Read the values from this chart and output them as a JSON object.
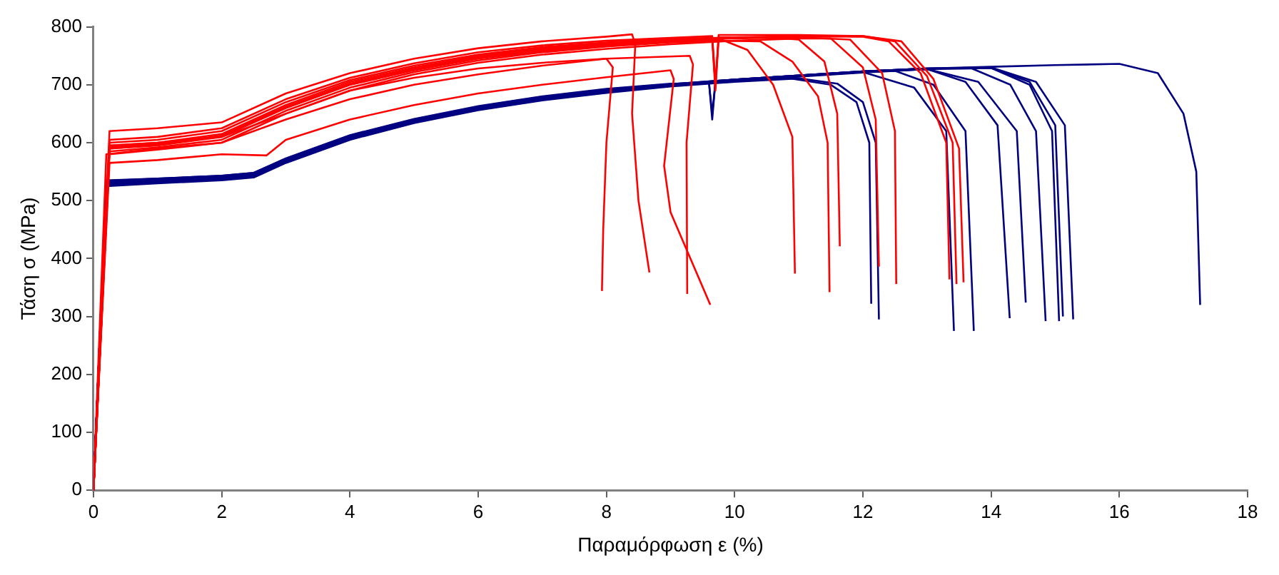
{
  "chart_data": {
    "type": "line",
    "xlabel": "Παραμόρφωση ε (%)",
    "ylabel": "Τάση σ (MPa)",
    "xlim": [
      0,
      18
    ],
    "xticks": [
      0,
      2,
      4,
      6,
      8,
      10,
      12,
      14,
      16,
      18
    ],
    "ylim": [
      0,
      800
    ],
    "yticks": [
      0,
      100,
      200,
      300,
      400,
      500,
      600,
      700,
      800
    ],
    "grid": false,
    "legend": false,
    "marker": "none",
    "line_style": "solid",
    "series": [
      {
        "color": "#ff0000",
        "x": [
          0,
          0.2,
          1,
          2,
          3,
          4,
          5,
          6,
          7,
          8.0,
          8.1,
          8.0,
          7.95,
          7.93
        ],
        "values": [
          0,
          580,
          590,
          600,
          640,
          675,
          700,
          718,
          733,
          745,
          730,
          600,
          450,
          344
        ]
      },
      {
        "color": "#ff0000",
        "x": [
          0,
          0.25,
          1,
          2,
          3,
          4,
          5,
          6,
          7,
          8,
          8.4,
          8.45,
          8.4,
          8.5,
          8.67
        ],
        "values": [
          0,
          620,
          625,
          635,
          685,
          720,
          745,
          763,
          775,
          783,
          787,
          770,
          650,
          500,
          376
        ]
      },
      {
        "color": "#ff0000",
        "x": [
          0,
          0.25,
          1,
          2,
          2.7,
          3,
          4,
          5,
          6,
          7,
          8,
          9,
          9.05,
          8.9,
          9.0,
          9.62
        ],
        "values": [
          0,
          565,
          570,
          580,
          578,
          605,
          640,
          665,
          685,
          700,
          713,
          725,
          710,
          560,
          480,
          320
        ]
      },
      {
        "color": "#ff0000",
        "x": [
          0,
          0.25,
          1,
          2,
          3,
          4,
          5,
          6,
          7,
          8,
          9.3,
          9.35,
          9.25,
          9.26
        ],
        "values": [
          0,
          595,
          600,
          610,
          650,
          690,
          712,
          728,
          738,
          745,
          750,
          735,
          600,
          339
        ]
      },
      {
        "color": "#ff0000",
        "x": [
          0,
          0.25,
          1,
          2,
          3,
          4,
          5,
          6,
          7,
          8,
          9,
          9.65,
          9.7,
          9.75,
          10.2,
          10.6,
          10.9,
          10.94
        ],
        "values": [
          0,
          590,
          595,
          610,
          660,
          700,
          725,
          745,
          758,
          768,
          775,
          778,
          690,
          780,
          760,
          700,
          610,
          374
        ]
      },
      {
        "color": "#ff0000",
        "x": [
          0,
          0.25,
          1,
          2,
          3,
          4,
          5,
          6,
          7,
          8,
          9,
          9.7,
          10.4,
          10.9,
          11.3,
          11.45,
          11.48
        ],
        "values": [
          0,
          585,
          592,
          605,
          655,
          695,
          722,
          742,
          756,
          766,
          773,
          776,
          775,
          740,
          680,
          600,
          342
        ]
      },
      {
        "color": "#ff0000",
        "x": [
          0,
          0.25,
          1,
          2,
          3,
          4,
          5,
          6,
          7,
          8,
          9,
          9.65,
          9.7,
          9.75,
          10.5,
          11.0,
          11.4,
          11.6,
          11.64
        ],
        "values": [
          0,
          600,
          605,
          620,
          670,
          708,
          733,
          752,
          765,
          773,
          779,
          781,
          700,
          782,
          782,
          778,
          740,
          650,
          421
        ]
      },
      {
        "color": "#ff0000",
        "x": [
          0,
          0.25,
          1,
          2,
          3,
          4,
          5,
          6,
          7,
          8,
          9,
          10,
          11,
          11.5,
          12.0,
          12.2,
          12.25
        ],
        "values": [
          0,
          580,
          588,
          600,
          650,
          690,
          718,
          738,
          752,
          762,
          770,
          776,
          780,
          780,
          730,
          640,
          386
        ]
      },
      {
        "color": "#ff0000",
        "x": [
          0,
          0.25,
          1,
          2,
          3,
          4,
          5,
          6,
          7,
          8,
          9,
          10,
          11,
          11.8,
          12.3,
          12.5,
          12.52
        ],
        "values": [
          0,
          590,
          596,
          612,
          662,
          702,
          728,
          748,
          761,
          770,
          776,
          780,
          782,
          778,
          720,
          620,
          356
        ]
      },
      {
        "color": "#ff0000",
        "x": [
          0,
          0.25,
          1,
          2,
          3,
          4,
          5,
          6,
          7,
          8,
          9,
          10,
          11,
          12,
          12.4,
          12.9,
          13.3,
          13.35
        ],
        "values": [
          0,
          595,
          600,
          615,
          665,
          705,
          730,
          750,
          763,
          772,
          778,
          782,
          784,
          783,
          775,
          720,
          600,
          364
        ]
      },
      {
        "color": "#ff0000",
        "x": [
          0,
          0.25,
          1,
          2,
          3,
          4,
          5,
          6,
          7,
          8,
          9,
          10,
          11,
          12,
          12.5,
          13.0,
          13.4,
          13.46
        ],
        "values": [
          0,
          592,
          598,
          612,
          660,
          700,
          726,
          746,
          760,
          770,
          777,
          781,
          783,
          784,
          775,
          715,
          600,
          356
        ]
      },
      {
        "color": "#ff0000",
        "x": [
          0,
          0.25,
          1,
          2,
          3,
          4,
          5,
          6,
          7,
          8,
          9,
          9.65,
          9.7,
          9.75,
          10,
          11,
          12,
          12.6,
          13.1,
          13.5,
          13.57
        ],
        "values": [
          0,
          605,
          610,
          625,
          675,
          712,
          737,
          756,
          768,
          776,
          781,
          784,
          700,
          786,
          786,
          786,
          784,
          775,
          710,
          590,
          359
        ]
      },
      {
        "color": "#000080",
        "x": [
          0,
          0.2,
          1,
          2,
          2.5,
          3,
          4,
          5,
          6,
          7,
          8,
          9,
          10,
          10.8,
          11.5,
          11.9,
          12.1,
          12.13
        ],
        "values": [
          0,
          530,
          535,
          540,
          545,
          570,
          610,
          638,
          660,
          677,
          690,
          700,
          708,
          712,
          700,
          670,
          600,
          322
        ]
      },
      {
        "color": "#000080",
        "x": [
          0,
          0.2,
          1,
          2,
          2.5,
          3,
          4,
          5,
          6,
          7,
          8,
          9,
          10,
          11,
          11.6,
          12.0,
          12.2,
          12.25
        ],
        "values": [
          0,
          525,
          530,
          535,
          540,
          565,
          605,
          634,
          656,
          673,
          686,
          697,
          705,
          711,
          702,
          670,
          600,
          295
        ]
      },
      {
        "color": "#000080",
        "x": [
          0,
          0.2,
          1,
          2,
          2.5,
          3,
          4,
          5,
          6,
          7,
          8,
          9,
          9.6,
          9.65,
          9.7,
          10,
          11,
          12,
          12.8,
          13.3,
          13.42
        ],
        "values": [
          0,
          535,
          538,
          543,
          548,
          572,
          612,
          640,
          662,
          679,
          692,
          701,
          703,
          640,
          705,
          708,
          715,
          722,
          695,
          620,
          275
        ]
      },
      {
        "color": "#000080",
        "x": [
          0,
          0.2,
          1,
          2,
          2.5,
          3,
          4,
          5,
          6,
          7,
          8,
          9,
          10,
          11,
          12,
          12.5,
          13.1,
          13.6,
          13.73
        ],
        "values": [
          0,
          530,
          535,
          540,
          545,
          570,
          610,
          638,
          660,
          677,
          690,
          700,
          708,
          715,
          722,
          724,
          700,
          620,
          275
        ]
      },
      {
        "color": "#000080",
        "x": [
          0,
          0.2,
          1,
          2,
          2.5,
          3,
          4,
          5,
          6,
          7,
          8,
          9,
          10,
          11,
          12,
          13,
          13.6,
          14.1,
          14.29
        ],
        "values": [
          0,
          528,
          533,
          538,
          543,
          568,
          608,
          636,
          658,
          675,
          688,
          699,
          707,
          714,
          721,
          727,
          705,
          630,
          297
        ]
      },
      {
        "color": "#000080",
        "x": [
          0,
          0.2,
          1,
          2,
          2.5,
          3,
          4,
          5,
          6,
          7,
          8,
          9,
          10,
          11,
          12,
          13,
          13.8,
          14.4,
          14.54
        ],
        "values": [
          0,
          532,
          536,
          541,
          546,
          571,
          611,
          639,
          661,
          678,
          691,
          700,
          708,
          715,
          722,
          727,
          705,
          620,
          324
        ]
      },
      {
        "color": "#000080",
        "x": [
          0,
          0.2,
          1,
          2,
          2.5,
          3,
          4,
          5,
          6,
          7,
          8,
          9,
          10,
          11,
          12,
          13,
          13.7,
          14.3,
          14.7,
          14.85
        ],
        "values": [
          0,
          530,
          535,
          540,
          545,
          570,
          610,
          638,
          660,
          677,
          690,
          700,
          709,
          716,
          723,
          728,
          728,
          700,
          620,
          292
        ]
      },
      {
        "color": "#000080",
        "x": [
          0,
          0.2,
          1,
          2,
          2.5,
          3,
          4,
          5,
          6,
          7,
          8,
          9,
          10,
          11,
          12,
          13,
          14,
          14.6,
          14.95,
          15.06
        ],
        "values": [
          0,
          533,
          537,
          542,
          547,
          572,
          612,
          640,
          662,
          679,
          692,
          701,
          709,
          716,
          723,
          728,
          729,
          700,
          620,
          292
        ]
      },
      {
        "color": "#000080",
        "x": [
          0,
          0.2,
          1,
          2,
          2.5,
          3,
          4,
          5,
          6,
          7,
          8,
          9,
          10,
          11,
          12,
          13,
          14,
          14.6,
          15.0,
          15.12
        ],
        "values": [
          0,
          527,
          532,
          537,
          542,
          567,
          607,
          635,
          657,
          674,
          688,
          698,
          708,
          715,
          722,
          727,
          729,
          705,
          630,
          300
        ]
      },
      {
        "color": "#000080",
        "x": [
          0,
          0.2,
          1,
          2,
          2.5,
          3,
          4,
          5,
          6,
          7,
          8,
          9,
          10,
          11,
          12,
          13,
          14,
          14.7,
          15.15,
          15.28
        ],
        "values": [
          0,
          531,
          536,
          541,
          546,
          571,
          611,
          639,
          661,
          678,
          691,
          701,
          709,
          716,
          723,
          728,
          730,
          705,
          630,
          295
        ]
      },
      {
        "color": "#000080",
        "x": [
          0,
          0.2,
          1,
          2,
          2.5,
          3,
          4,
          5,
          6,
          7,
          8,
          9,
          9.6,
          9.65,
          9.7,
          10,
          11,
          12,
          13,
          14,
          15,
          16,
          16.6,
          17.0,
          17.2,
          17.26
        ],
        "values": [
          0,
          534,
          538,
          543,
          548,
          573,
          613,
          641,
          663,
          680,
          693,
          702,
          703,
          650,
          705,
          709,
          716,
          723,
          728,
          731,
          734,
          736,
          720,
          650,
          550,
          320
        ]
      }
    ]
  }
}
